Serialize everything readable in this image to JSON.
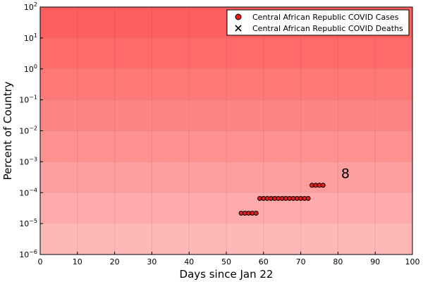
{
  "chart_data": {
    "type": "scatter",
    "title": "",
    "xlabel": "Days since Jan 22",
    "ylabel": "Percent of Country",
    "xlim": [
      0,
      100
    ],
    "ylim_exponents": [
      -6,
      2
    ],
    "y_scale": "log",
    "grid": true,
    "legend_position": "top-right",
    "x_ticks": [
      "0",
      "10",
      "20",
      "30",
      "40",
      "50",
      "60",
      "70",
      "80",
      "90",
      "100"
    ],
    "y_ticks": [
      {
        "base": "10",
        "exp": "−6"
      },
      {
        "base": "10",
        "exp": "−5"
      },
      {
        "base": "10",
        "exp": "−4"
      },
      {
        "base": "10",
        "exp": "−3"
      },
      {
        "base": "10",
        "exp": "−2"
      },
      {
        "base": "10",
        "exp": "−1"
      },
      {
        "base": "10",
        "exp": "0"
      },
      {
        "base": "10",
        "exp": "1"
      },
      {
        "base": "10",
        "exp": "2"
      }
    ],
    "series": [
      {
        "name": "Central African Republic COVID Cases",
        "marker": "circle",
        "color": "#e41a1c",
        "points": [
          {
            "x": 54,
            "y": 2.17e-05
          },
          {
            "x": 55,
            "y": 2.17e-05
          },
          {
            "x": 56,
            "y": 2.17e-05
          },
          {
            "x": 57,
            "y": 2.17e-05
          },
          {
            "x": 58,
            "y": 2.17e-05
          },
          {
            "x": 59,
            "y": 6.5e-05
          },
          {
            "x": 60,
            "y": 6.5e-05
          },
          {
            "x": 61,
            "y": 6.5e-05
          },
          {
            "x": 62,
            "y": 6.5e-05
          },
          {
            "x": 63,
            "y": 6.5e-05
          },
          {
            "x": 64,
            "y": 6.5e-05
          },
          {
            "x": 65,
            "y": 6.5e-05
          },
          {
            "x": 66,
            "y": 6.5e-05
          },
          {
            "x": 67,
            "y": 6.5e-05
          },
          {
            "x": 68,
            "y": 6.5e-05
          },
          {
            "x": 69,
            "y": 6.5e-05
          },
          {
            "x": 70,
            "y": 6.5e-05
          },
          {
            "x": 71,
            "y": 6.5e-05
          },
          {
            "x": 72,
            "y": 6.5e-05
          },
          {
            "x": 73,
            "y": 0.000173
          },
          {
            "x": 74,
            "y": 0.000173
          },
          {
            "x": 75,
            "y": 0.000173
          },
          {
            "x": 76,
            "y": 0.000173
          }
        ]
      },
      {
        "name": "Central African Republic COVID Deaths",
        "marker": "x",
        "color": "#000000",
        "points": []
      }
    ],
    "annotations": [
      {
        "text": "8",
        "x": 82,
        "y": 0.0003
      }
    ],
    "background_gradient": {
      "top": "#ff5e5e",
      "bottom": "#ffb8b8"
    }
  }
}
